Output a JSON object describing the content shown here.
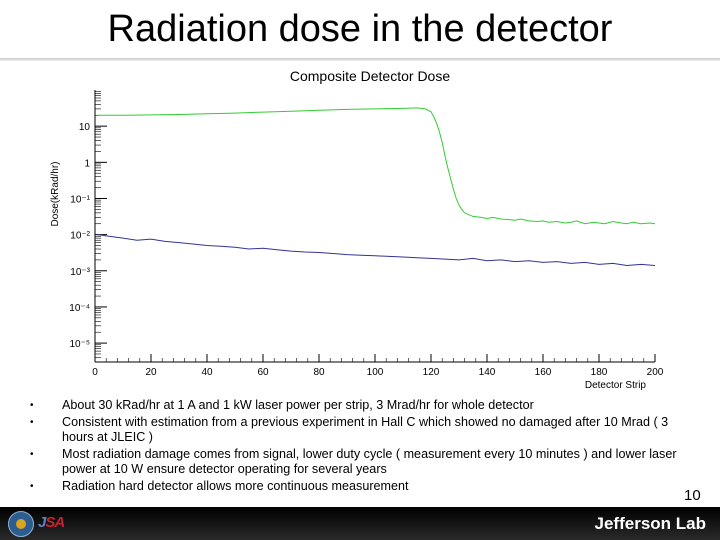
{
  "slide": {
    "title": "Radiation dose in the detector",
    "page_number": "10",
    "footer_brand": "Jefferson Lab",
    "footer_partner": "JSA"
  },
  "bullets": [
    "About 30 kRad/hr at 1 A and 1 kW laser power per strip, 3 Mrad/hr for whole detector",
    "Consistent with estimation from a previous experiment in Hall C which showed no damaged after 10 Mrad ( 3 hours at JLEIC )",
    "Most radiation damage comes from signal, lower duty cycle ( measurement every 10 minutes ) and lower laser power at 10 W  ensure detector operating for several years",
    "Radiation hard detector allows more continuous measurement"
  ],
  "colors": {
    "green": "#33cc33",
    "blue": "#333399",
    "axis": "#000000"
  },
  "chart_data": {
    "type": "line",
    "title": "Composite Detector Dose",
    "xlabel": "Detector Strip",
    "ylabel": "Dose(kRad/hr)",
    "xlim": [
      0,
      200
    ],
    "ylim": [
      3e-06,
      100
    ],
    "y_scale": "log",
    "grid": false,
    "x_ticks": [
      0,
      20,
      40,
      60,
      80,
      100,
      120,
      140,
      160,
      180,
      200
    ],
    "y_ticks": [
      {
        "value": 10,
        "label": "10"
      },
      {
        "value": 1,
        "label": "1"
      },
      {
        "value": 0.1,
        "label": "10⁻¹"
      },
      {
        "value": 0.01,
        "label": "10⁻²"
      },
      {
        "value": 0.001,
        "label": "10⁻³"
      },
      {
        "value": 0.0001,
        "label": "10⁻⁴"
      },
      {
        "value": 1e-05,
        "label": "10⁻⁵"
      }
    ],
    "series": [
      {
        "color": "#33cc33",
        "x": [
          1,
          5,
          10,
          20,
          30,
          40,
          50,
          60,
          70,
          80,
          90,
          100,
          110,
          115,
          118,
          120,
          121,
          122,
          123,
          124,
          125,
          126,
          127,
          128,
          129,
          130,
          131,
          132,
          135,
          138,
          140,
          142,
          145,
          148,
          150,
          152,
          155,
          158,
          160,
          162,
          165,
          168,
          170,
          172,
          175,
          178,
          180,
          182,
          185,
          188,
          190,
          192,
          195,
          198,
          200
        ],
        "y": [
          20,
          20,
          20,
          20.5,
          21,
          22,
          23,
          24.5,
          26,
          27.5,
          29,
          30,
          31,
          32,
          30,
          25,
          18,
          12,
          7,
          3.5,
          1.5,
          0.7,
          0.35,
          0.18,
          0.1,
          0.065,
          0.05,
          0.04,
          0.032,
          0.03,
          0.028,
          0.03,
          0.027,
          0.026,
          0.025,
          0.027,
          0.024,
          0.023,
          0.024,
          0.022,
          0.023,
          0.021,
          0.022,
          0.024,
          0.02,
          0.022,
          0.021,
          0.02,
          0.023,
          0.021,
          0.02,
          0.022,
          0.02,
          0.021,
          0.02
        ]
      },
      {
        "color": "#333399",
        "x": [
          1,
          5,
          10,
          15,
          20,
          25,
          30,
          35,
          40,
          45,
          50,
          55,
          60,
          65,
          70,
          75,
          80,
          85,
          90,
          95,
          100,
          105,
          110,
          115,
          120,
          125,
          130,
          135,
          140,
          145,
          150,
          155,
          160,
          165,
          170,
          175,
          180,
          185,
          190,
          195,
          200
        ],
        "y": [
          0.01,
          0.009,
          0.008,
          0.007,
          0.0075,
          0.0065,
          0.006,
          0.0055,
          0.005,
          0.0048,
          0.0045,
          0.004,
          0.0042,
          0.0038,
          0.0035,
          0.0033,
          0.0032,
          0.003,
          0.0028,
          0.0027,
          0.0026,
          0.0025,
          0.0024,
          0.0023,
          0.0022,
          0.0021,
          0.002,
          0.0022,
          0.0019,
          0.002,
          0.0018,
          0.0019,
          0.0017,
          0.0018,
          0.0016,
          0.0017,
          0.0015,
          0.0016,
          0.0014,
          0.0015,
          0.0014
        ]
      }
    ]
  }
}
